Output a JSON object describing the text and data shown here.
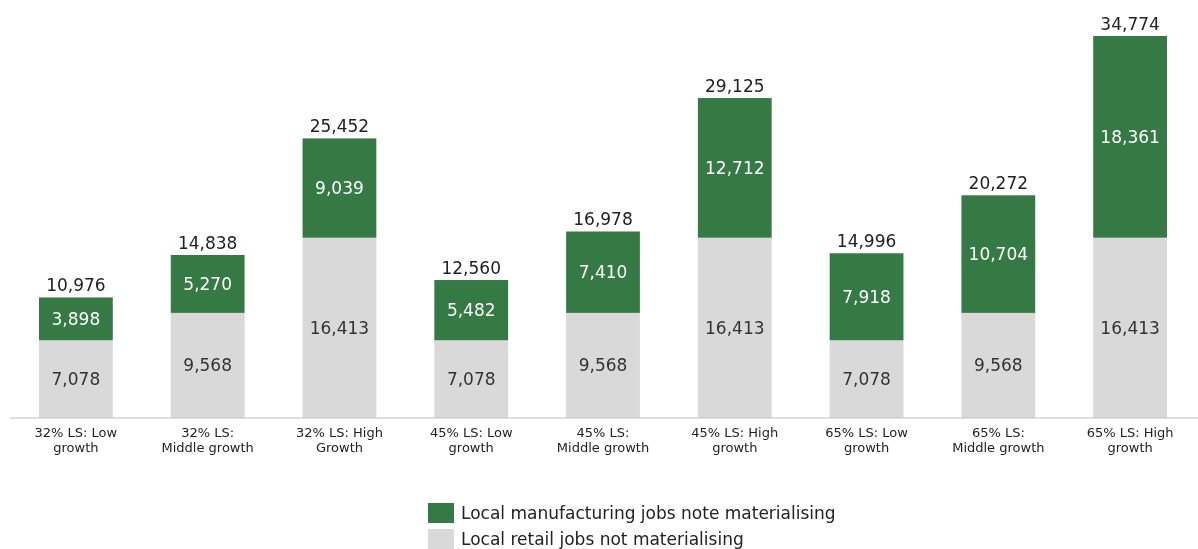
{
  "chart_data": {
    "type": "bar",
    "stacked": true,
    "categories": [
      "32% LS: Low growth",
      "32% LS: Middle growth",
      "32% LS: High Growth",
      "45% LS: Low growth",
      "45% LS: Middle growth",
      "45% LS: High growth",
      "65% LS: Low growth",
      "65% LS: Middle growth",
      "65% LS: High growth"
    ],
    "series": [
      {
        "name": "Local retail jobs not materialising",
        "color": "#d9d9d9",
        "values": [
          7078,
          9568,
          16413,
          7078,
          9568,
          16413,
          7078,
          9568,
          16413
        ],
        "value_labels": [
          "7,078",
          "9,568",
          "16,413",
          "7,078",
          "9,568",
          "16,413",
          "7,078",
          "9,568",
          "16,413"
        ]
      },
      {
        "name": "Local manufacturing jobs note materialising",
        "color": "#357a45",
        "values": [
          3898,
          5270,
          9039,
          5482,
          7410,
          12712,
          7918,
          10704,
          18361
        ],
        "value_labels": [
          "3,898",
          "5,270",
          "9,039",
          "5,482",
          "7,410",
          "12,712",
          "7,918",
          "10,704",
          "18,361"
        ]
      }
    ],
    "totals": [
      "10,976",
      "14,838",
      "25,452",
      "12,560",
      "16,978",
      "29,125",
      "14,996",
      "20,272",
      "34,774"
    ],
    "legend": "bottom"
  }
}
